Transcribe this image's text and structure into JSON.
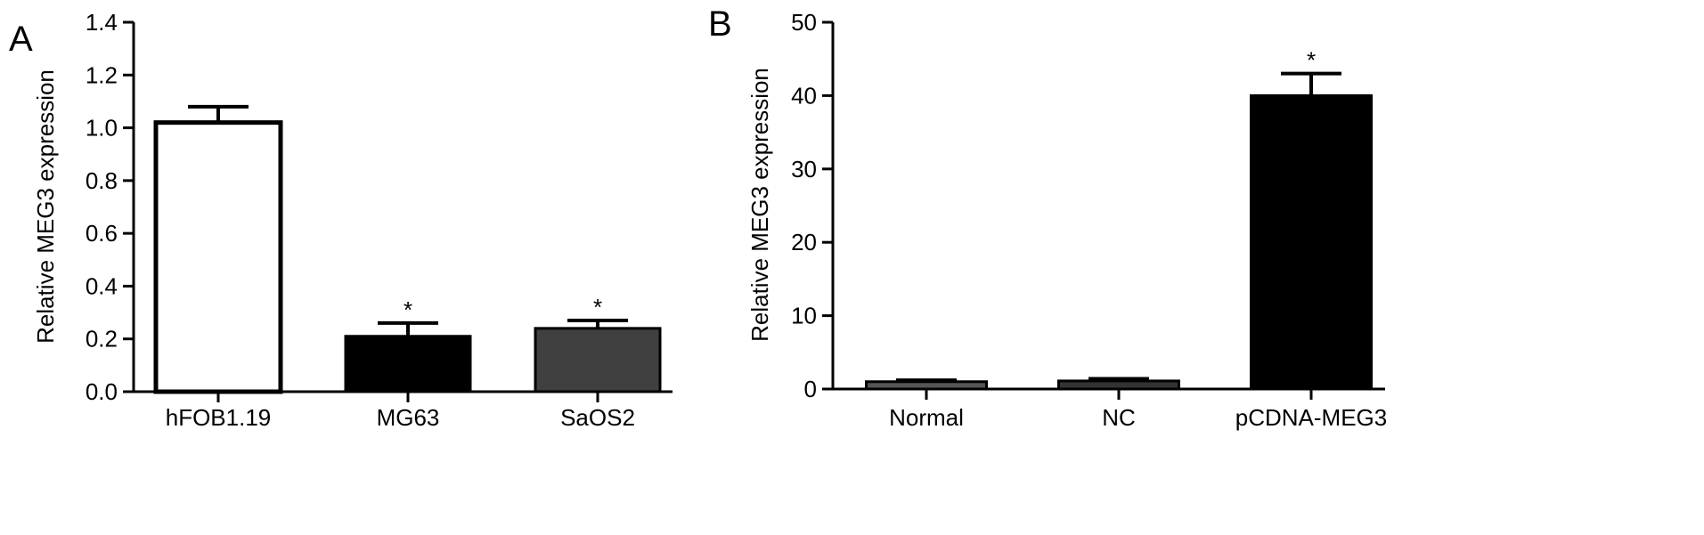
{
  "chart_data": [
    {
      "type": "bar",
      "panel_label": "A",
      "ylabel": "Relative MEG3 expression",
      "xlabel": "",
      "ylim": [
        0,
        1.4
      ],
      "yticks": [
        "0.0",
        "0.2",
        "0.4",
        "0.6",
        "0.8",
        "1.0",
        "1.2",
        "1.4"
      ],
      "categories": [
        "hFOB1.19",
        "MG63",
        "SaOS2"
      ],
      "values": [
        1.02,
        0.21,
        0.24
      ],
      "errors": [
        0.06,
        0.05,
        0.03
      ],
      "colors": [
        "#ffffff",
        "#000000",
        "#404040"
      ],
      "significance": [
        "",
        "*",
        "*"
      ]
    },
    {
      "type": "bar",
      "panel_label": "B",
      "ylabel": "Relative MEG3 expression",
      "xlabel": "",
      "ylim": [
        0,
        50
      ],
      "yticks": [
        "0",
        "10",
        "20",
        "30",
        "40",
        "50"
      ],
      "categories": [
        "Normal",
        "NC",
        "pCDNA-MEG3"
      ],
      "values": [
        1.0,
        1.1,
        40.0
      ],
      "errors": [
        0.2,
        0.3,
        3.0
      ],
      "colors": [
        "#555555",
        "#333333",
        "#000000"
      ],
      "significance": [
        "",
        "",
        "*"
      ]
    }
  ]
}
